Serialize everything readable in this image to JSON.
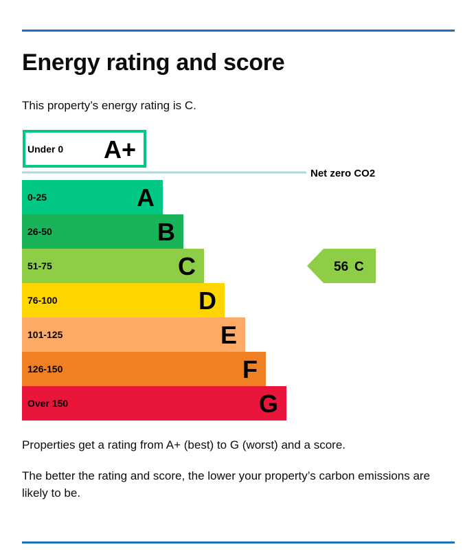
{
  "page": {
    "title": "Energy rating and score",
    "intro": "This property’s energy rating is C.",
    "paragraph1": "Properties get a rating from A+ (best) to G (worst) and a score.",
    "paragraph2": "The better the rating and score, the lower your property’s carbon emissions are likely to be."
  },
  "chart_data": {
    "type": "bar",
    "orientation": "horizontal",
    "top_band": {
      "range": "Under 0",
      "letter": "A+",
      "border_color": "#00c781"
    },
    "net_zero_label": "Net zero CO2",
    "net_zero_line_color": "#a8d8da",
    "bands": [
      {
        "letter": "A",
        "range": "0-25",
        "color": "#00c781"
      },
      {
        "letter": "B",
        "range": "26-50",
        "color": "#19b459"
      },
      {
        "letter": "C",
        "range": "51-75",
        "color": "#8dce46"
      },
      {
        "letter": "D",
        "range": "76-100",
        "color": "#ffd500"
      },
      {
        "letter": "E",
        "range": "101-125",
        "color": "#fcaa65"
      },
      {
        "letter": "F",
        "range": "126-150",
        "color": "#ef8023"
      },
      {
        "letter": "G",
        "range": "Over 150",
        "color": "#e9153b"
      }
    ],
    "current": {
      "score": "56",
      "letter": "C",
      "band_index": 2,
      "color": "#8dce46"
    }
  }
}
